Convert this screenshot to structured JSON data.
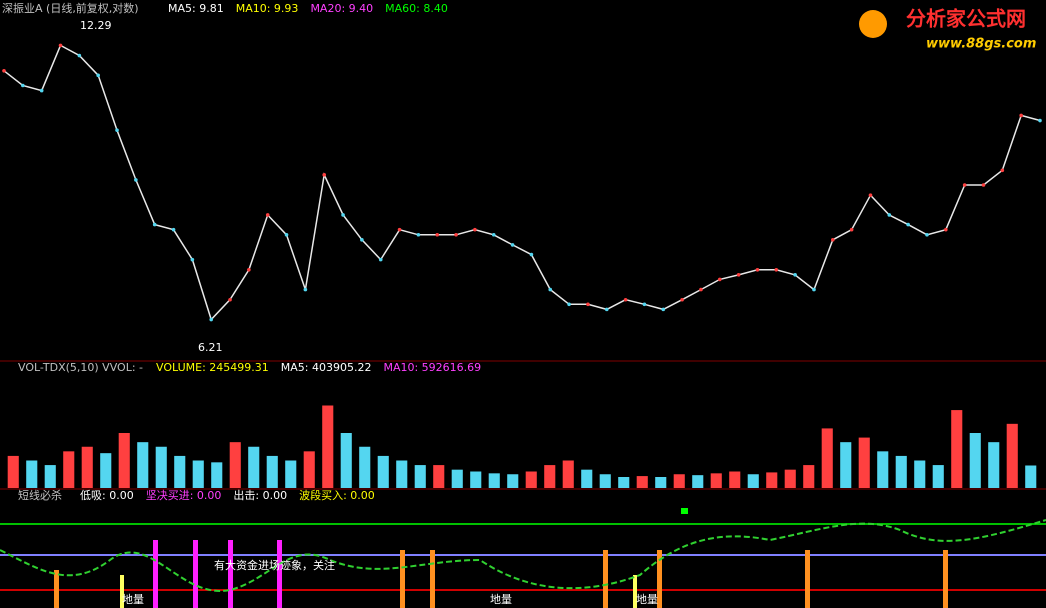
{
  "header": {
    "logo_title": "分析家公式网",
    "logo_url": "www.88gs.com"
  },
  "chart_data": [
    {
      "type": "line",
      "title": "深振业A (日线,前复权,对数)",
      "legend_items": [
        {
          "text": "MA5: 9.81",
          "color": "#ffffff"
        },
        {
          "text": "MA10: 9.93",
          "color": "#ffff00"
        },
        {
          "text": "MA20: 9.40",
          "color": "#ff40ff"
        },
        {
          "text": "MA60: 8.40",
          "color": "#00ff00"
        }
      ],
      "annotations": [
        "12.29",
        "6.21"
      ],
      "values": [
        11.5,
        11.21,
        11.11,
        12.0,
        11.8,
        11.41,
        10.33,
        9.35,
        8.47,
        8.37,
        7.78,
        6.6,
        6.99,
        7.58,
        8.66,
        8.27,
        7.19,
        9.45,
        8.66,
        8.17,
        7.78,
        8.37,
        8.27,
        8.27,
        8.27,
        8.37,
        8.27,
        8.07,
        7.88,
        7.19,
        6.9,
        6.9,
        6.8,
        6.99,
        6.9,
        6.8,
        6.99,
        7.19,
        7.39,
        7.48,
        7.58,
        7.58,
        7.48,
        7.19,
        8.17,
        8.37,
        9.05,
        8.66,
        8.47,
        8.27,
        8.37,
        9.25,
        9.25,
        9.54,
        10.62,
        10.52
      ],
      "color": "#e8e8e8",
      "ylim": [
        6.0,
        12.5
      ]
    },
    {
      "type": "bar",
      "title": "VOL-TDX(5,10) VVOL: -",
      "legend_items": [
        {
          "text": "VOLUME: 245499.31",
          "color": "#ffff00"
        },
        {
          "text": "MA5: 403905.22",
          "color": "#ffffff"
        },
        {
          "text": "MA10: 592616.69",
          "color": "#ff40ff"
        }
      ],
      "values": [
        350000,
        300000,
        250000,
        400000,
        450000,
        380000,
        600000,
        500000,
        450000,
        350000,
        300000,
        280000,
        500000,
        450000,
        350000,
        300000,
        400000,
        900000,
        600000,
        450000,
        350000,
        300000,
        250000,
        250000,
        200000,
        180000,
        160000,
        150000,
        180000,
        250000,
        300000,
        200000,
        150000,
        120000,
        130000,
        120000,
        150000,
        140000,
        160000,
        180000,
        150000,
        170000,
        200000,
        250000,
        650000,
        500000,
        550000,
        400000,
        350000,
        300000,
        250000,
        850000,
        600000,
        500000,
        700000,
        245499.31
      ],
      "color": "#54d6f0",
      "ylim": [
        0,
        1200000
      ]
    }
  ],
  "signal_panel": {
    "title": "短线必杀",
    "legend_items": [
      {
        "text": "低吸: 0.00",
        "color": "#ffffff"
      },
      {
        "text": "坚决买进: 0.00",
        "color": "#ff40ff"
      },
      {
        "text": "出击: 0.00",
        "color": "#ffffff"
      },
      {
        "text": "波段买入: 0.00",
        "color": "#ffff00"
      }
    ],
    "note": "有大资金进场迹象，关注",
    "marks": [
      "地量",
      "地量",
      "地量"
    ]
  }
}
